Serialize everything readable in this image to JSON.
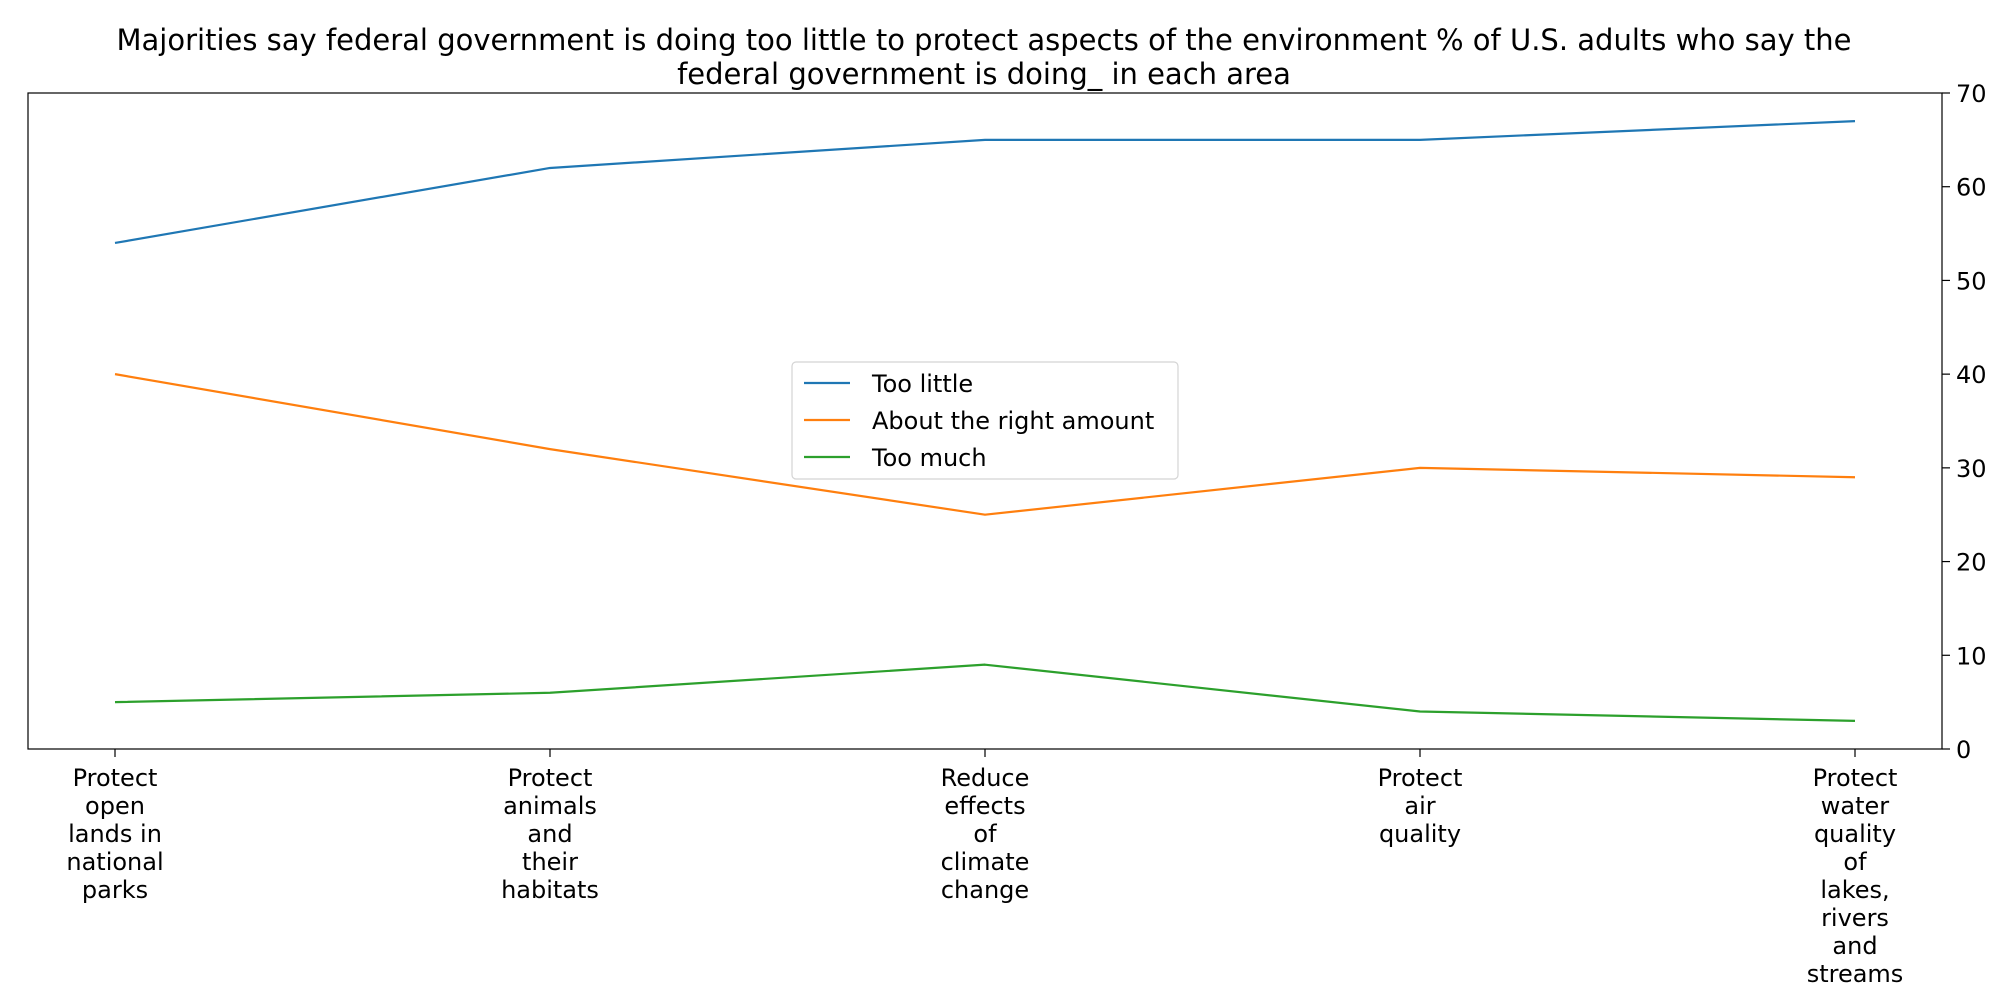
{
  "chart_data": {
    "type": "line",
    "title": "Majorities say federal government is doing too little to protect aspects of the environment % of U.S. adults who say the federal government is doing_ in each area",
    "title_lines": [
      "Majorities say federal government is doing too little to protect aspects of the environment % of U.S. adults who say the",
      "federal government is doing_ in each area"
    ],
    "xlabel": "",
    "ylabel": "",
    "categories": [
      "Protect open lands in national parks",
      "Protect animals and their habitats",
      "Reduce effects of climate change",
      "Protect air quality",
      "Protect water quality of lakes, rivers and streams"
    ],
    "category_lines": [
      [
        "Protect",
        "open",
        "lands in",
        "national",
        "parks"
      ],
      [
        "Protect",
        "animals",
        "and",
        "their",
        "habitats"
      ],
      [
        "Reduce",
        "effects",
        "of",
        "climate",
        "change"
      ],
      [
        "Protect",
        "air",
        "quality"
      ],
      [
        "Protect",
        "water",
        "quality",
        "of",
        "lakes,",
        "rivers",
        "and",
        "streams"
      ]
    ],
    "series": [
      {
        "name": "Too little",
        "color": "#1f77b4",
        "values": [
          54,
          62,
          65,
          65,
          67
        ]
      },
      {
        "name": "About the right amount",
        "color": "#ff7f0e",
        "values": [
          40,
          32,
          25,
          30,
          29
        ]
      },
      {
        "name": "Too much",
        "color": "#2ca02c",
        "values": [
          5,
          6,
          9,
          4,
          3
        ]
      }
    ],
    "ylim": [
      0,
      70
    ],
    "yticks": [
      0,
      10,
      20,
      30,
      40,
      50,
      60,
      70
    ],
    "yaxis_side": "right",
    "grid": false,
    "legend_position": "center"
  }
}
